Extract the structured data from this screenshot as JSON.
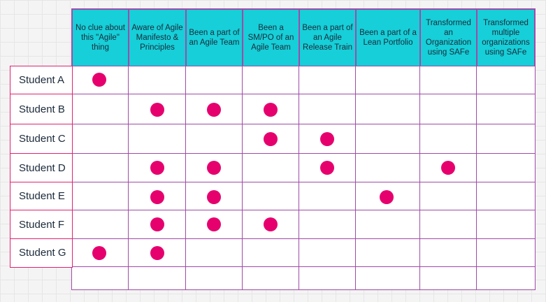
{
  "headers": [
    {
      "label": "No clue about this \"Agile\" thing"
    },
    {
      "label": "Aware of Agile Manifesto & Principles"
    },
    {
      "label": "Been a part of an Agile Team"
    },
    {
      "label": "Been a SM/PO of an Agile Team"
    },
    {
      "label": "Been a part of an Agile Release Train"
    },
    {
      "label": "Been a part of a Lean Portfolio"
    },
    {
      "label": "Transformed an Organization using SAFe"
    },
    {
      "label": "Transformed multiple organizations using SAFe"
    }
  ],
  "students": [
    {
      "name": "Student A",
      "marks": [
        0
      ]
    },
    {
      "name": "Student B",
      "marks": [
        1,
        2,
        3
      ]
    },
    {
      "name": "Student C",
      "marks": [
        3,
        4
      ]
    },
    {
      "name": "Student D",
      "marks": [
        1,
        2,
        4,
        6
      ]
    },
    {
      "name": "Student E",
      "marks": [
        1,
        2,
        5
      ]
    },
    {
      "name": "Student F",
      "marks": [
        1,
        2,
        3
      ]
    },
    {
      "name": "Student G",
      "marks": [
        0,
        1
      ]
    }
  ],
  "colors": {
    "header_fill": "#16cfd8",
    "grid_border": "#a04aa8",
    "student_border": "#e0226f",
    "dot": "#e6006e"
  }
}
